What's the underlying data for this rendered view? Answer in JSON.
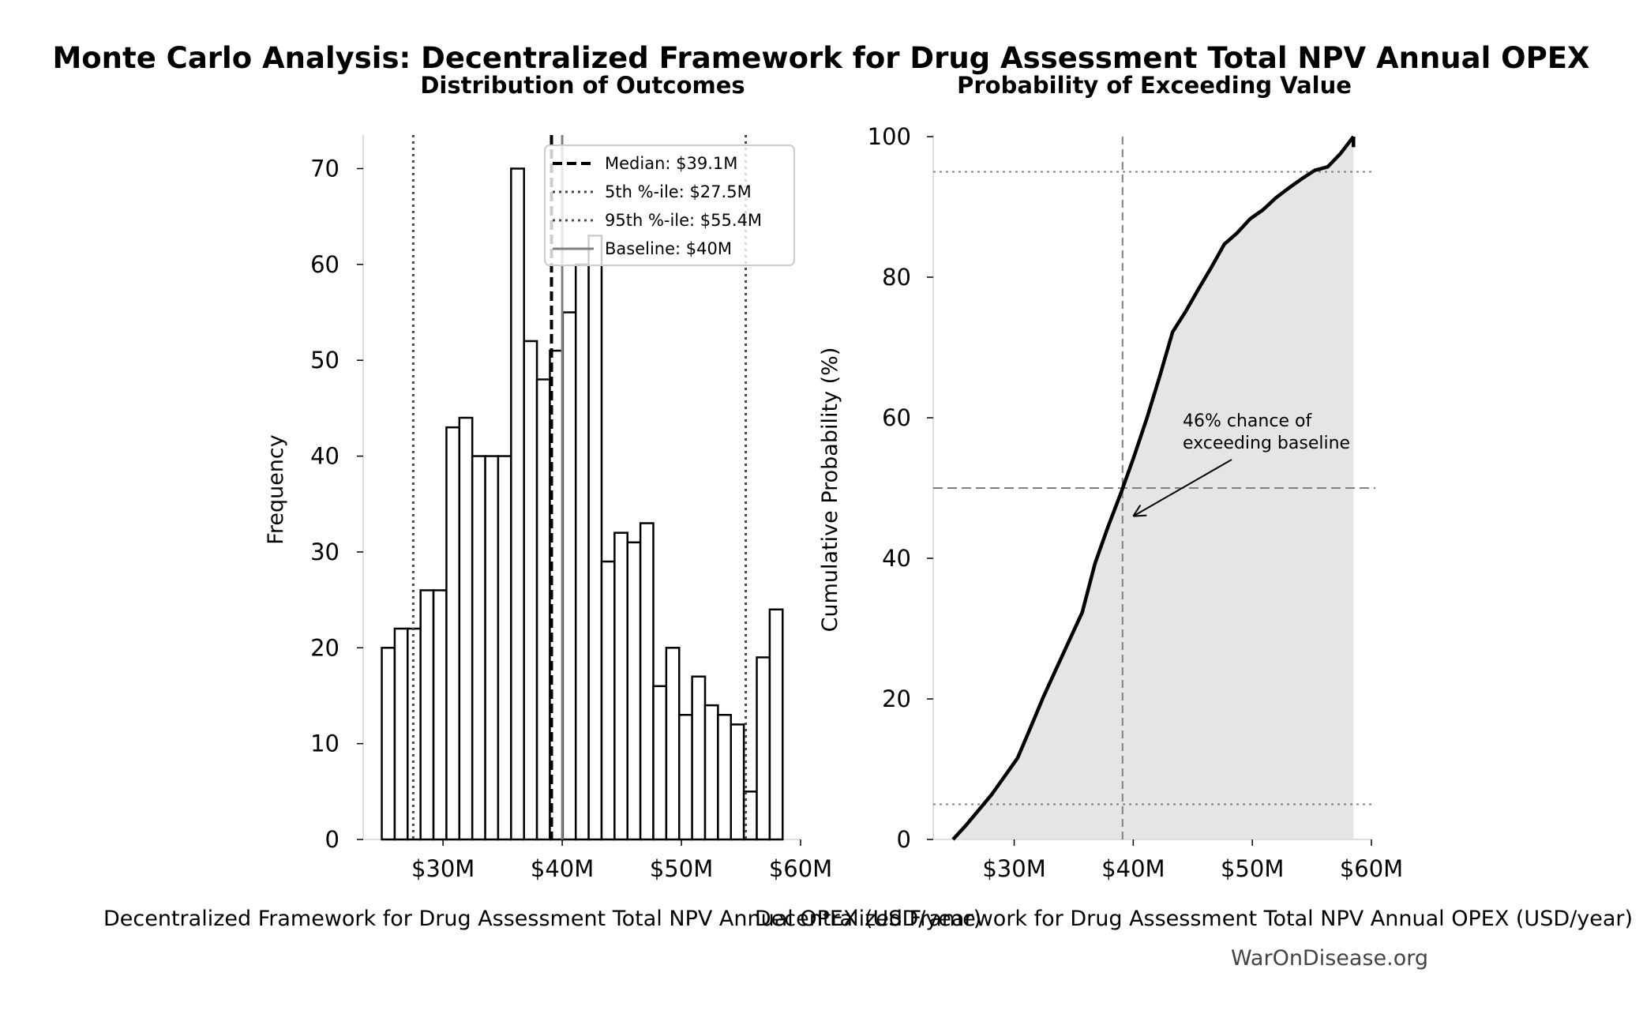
{
  "title": "Monte Carlo Analysis: Decentralized Framework for Drug Assessment Total NPV Annual OPEX",
  "watermark": "WarOnDisease.org",
  "colors": {
    "bars_edge": "#000000",
    "bars_fill": "#ffffff",
    "cdf_fill": "#e5e5e5",
    "reference_lines": "#808080",
    "spines": "#dddddd"
  },
  "chart_data": [
    {
      "type": "bar",
      "title": "Distribution of Outcomes",
      "xlabel": "Decentralized Framework for Drug Assessment Total NPV Annual OPEX (USD/year)",
      "ylabel": "Frequency",
      "xlim": [
        23.3,
        60
      ],
      "ylim": [
        0,
        73.5
      ],
      "x_unit": "$M",
      "xticks": [
        30,
        40,
        50,
        60
      ],
      "xtick_labels": [
        "$30M",
        "$40M",
        "$50M",
        "$60M"
      ],
      "yticks": [
        0,
        10,
        20,
        30,
        40,
        50,
        60,
        70
      ],
      "ytick_labels": [
        "0",
        "10",
        "20",
        "30",
        "40",
        "50",
        "60",
        "70"
      ],
      "bin_start": 24.86,
      "bin_width": 1.085,
      "values": [
        20,
        22,
        22,
        26,
        26,
        43,
        44,
        40,
        40,
        40,
        70,
        52,
        48,
        51,
        55,
        60,
        63,
        29,
        32,
        31,
        33,
        16,
        20,
        13,
        17,
        14,
        13,
        12,
        5,
        19,
        24
      ],
      "grid": false,
      "legend_position": "top-right",
      "reference_lines": [
        {
          "label": "Median: $39.1M",
          "x": 39.1,
          "style": "dashed",
          "color": "#000000"
        },
        {
          "label": "5th %-ile: $27.5M",
          "x": 27.5,
          "style": "dotted",
          "color": "#444444"
        },
        {
          "label": "95th %-ile: $55.4M",
          "x": 55.4,
          "style": "dotted",
          "color": "#444444"
        },
        {
          "label": "Baseline: $40M",
          "x": 40,
          "style": "solid",
          "color": "#808080"
        }
      ]
    },
    {
      "type": "area",
      "title": "Probability of Exceeding Value",
      "xlabel": "Decentralized Framework for Drug Assessment Total NPV Annual OPEX (USD/year)",
      "ylabel": "Cumulative Probability (%)",
      "xlim": [
        23.2,
        60
      ],
      "ylim": [
        0,
        100
      ],
      "xticks": [
        30,
        40,
        50,
        60
      ],
      "xtick_labels": [
        "$30M",
        "$40M",
        "$50M",
        "$60M"
      ],
      "yticks": [
        0,
        20,
        40,
        60,
        80,
        100
      ],
      "ytick_labels": [
        "0",
        "20",
        "40",
        "60",
        "80",
        "100"
      ],
      "grid": false,
      "hlines": [
        {
          "y": 5,
          "style": "dotted"
        },
        {
          "y": 50,
          "style": "dashed"
        },
        {
          "y": 95,
          "style": "dotted"
        }
      ],
      "vline": {
        "x": 39.1,
        "style": "dashed"
      },
      "annotation": {
        "text_line1": "46% chance of",
        "text_line2": "exceeding baseline",
        "arrow_to": [
          40,
          46
        ]
      }
    }
  ]
}
